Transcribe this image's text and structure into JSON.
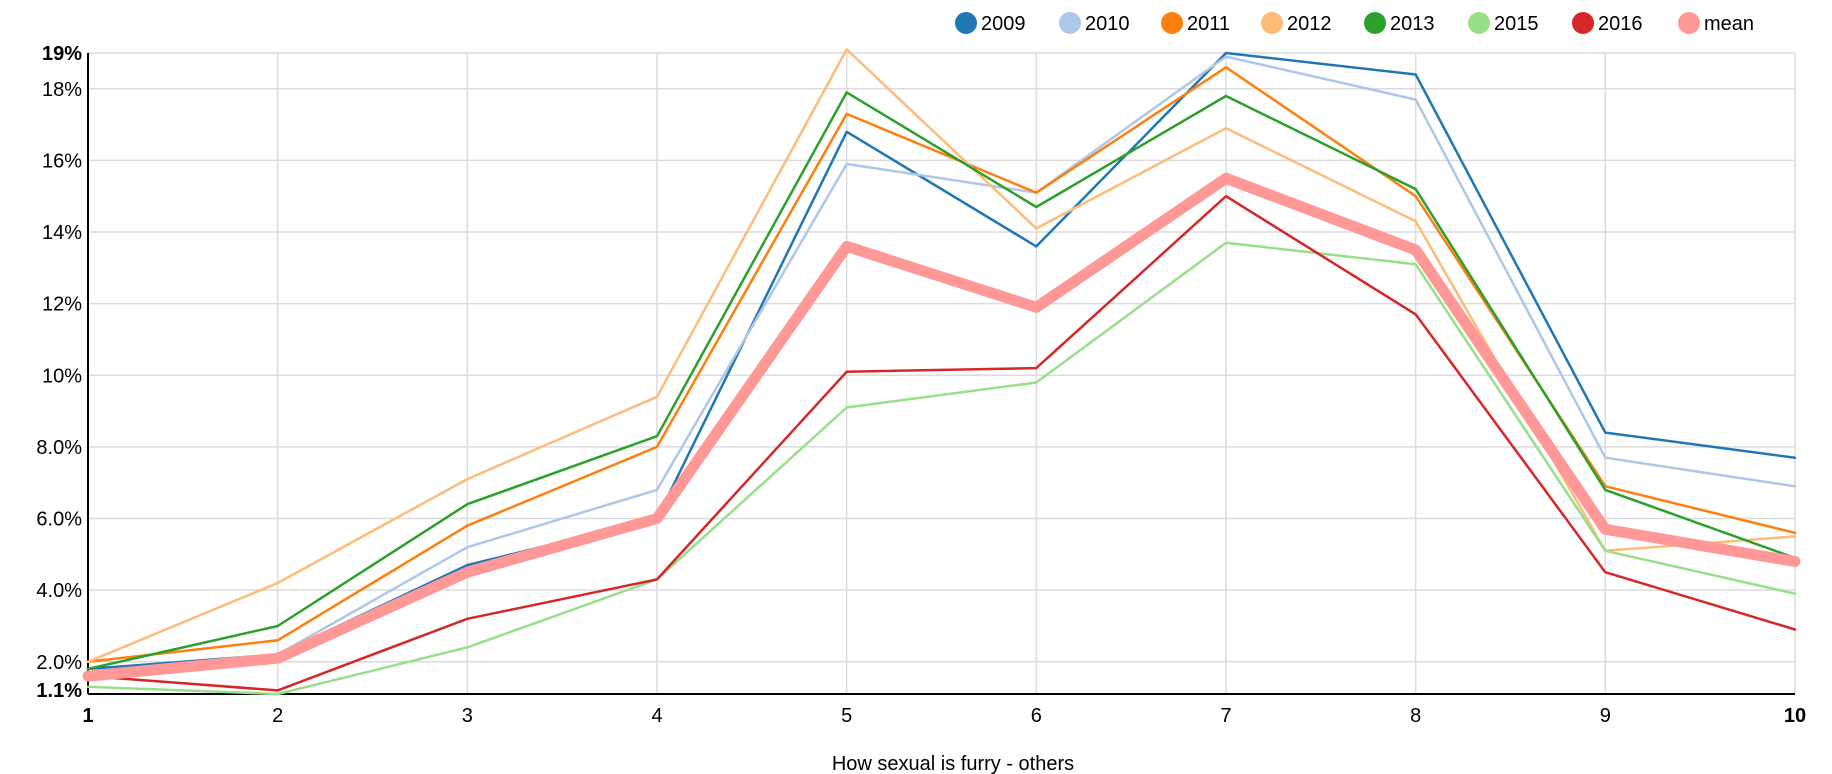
{
  "chart_data": {
    "type": "line",
    "xlabel": "How sexual is furry - others",
    "x": [
      1,
      2,
      3,
      4,
      5,
      6,
      7,
      8,
      9,
      10
    ],
    "xlim": [
      1,
      10
    ],
    "ylim": [
      1.1,
      19
    ],
    "y_ticks": [
      {
        "value": 1.1,
        "label": "1.1%",
        "bold": true
      },
      {
        "value": 2,
        "label": "2.0%",
        "bold": false
      },
      {
        "value": 4,
        "label": "4.0%",
        "bold": false
      },
      {
        "value": 6,
        "label": "6.0%",
        "bold": false
      },
      {
        "value": 8,
        "label": "8.0%",
        "bold": false
      },
      {
        "value": 10,
        "label": "10%",
        "bold": false
      },
      {
        "value": 12,
        "label": "12%",
        "bold": false
      },
      {
        "value": 14,
        "label": "14%",
        "bold": false
      },
      {
        "value": 16,
        "label": "16%",
        "bold": false
      },
      {
        "value": 18,
        "label": "18%",
        "bold": false
      },
      {
        "value": 19,
        "label": "19%",
        "bold": true
      }
    ],
    "x_ticks": [
      {
        "value": 1,
        "label": "1",
        "bold": true
      },
      {
        "value": 2,
        "label": "2",
        "bold": false
      },
      {
        "value": 3,
        "label": "3",
        "bold": false
      },
      {
        "value": 4,
        "label": "4",
        "bold": false
      },
      {
        "value": 5,
        "label": "5",
        "bold": false
      },
      {
        "value": 6,
        "label": "6",
        "bold": false
      },
      {
        "value": 7,
        "label": "7",
        "bold": false
      },
      {
        "value": 8,
        "label": "8",
        "bold": false
      },
      {
        "value": 9,
        "label": "9",
        "bold": false
      },
      {
        "value": 10,
        "label": "10",
        "bold": true
      }
    ],
    "grid": true,
    "legend_position": "top-right",
    "series": [
      {
        "name": "2009",
        "color": "#1f77b4",
        "values": [
          1.8,
          2.2,
          4.7,
          6.0,
          16.8,
          13.6,
          19.0,
          18.4,
          8.4,
          7.7
        ]
      },
      {
        "name": "2010",
        "color": "#aec7e8",
        "values": [
          1.7,
          2.2,
          5.2,
          6.8,
          15.9,
          15.1,
          18.9,
          17.7,
          7.7,
          6.9
        ]
      },
      {
        "name": "2011",
        "color": "#ff7f0e",
        "values": [
          2.0,
          2.6,
          5.8,
          8.0,
          17.3,
          15.1,
          18.6,
          15.0,
          6.9,
          5.6
        ]
      },
      {
        "name": "2012",
        "color": "#ffbb78",
        "values": [
          2.0,
          4.2,
          7.1,
          9.4,
          19.1,
          14.1,
          16.9,
          14.3,
          5.1,
          5.5
        ]
      },
      {
        "name": "2013",
        "color": "#2ca02c",
        "values": [
          1.8,
          3.0,
          6.4,
          8.3,
          17.9,
          14.7,
          17.8,
          15.2,
          6.8,
          4.9
        ]
      },
      {
        "name": "2015",
        "color": "#98df8a",
        "values": [
          1.3,
          1.1,
          2.4,
          4.3,
          9.1,
          9.8,
          13.7,
          13.1,
          5.1,
          3.9
        ]
      },
      {
        "name": "2016",
        "color": "#d62728",
        "values": [
          1.6,
          1.2,
          3.2,
          4.3,
          10.1,
          10.2,
          15.0,
          11.7,
          4.5,
          2.9
        ]
      },
      {
        "name": "mean",
        "color": "#ff9896",
        "values": [
          1.6,
          2.1,
          4.5,
          6.0,
          13.6,
          11.9,
          15.5,
          13.5,
          5.7,
          4.8
        ]
      }
    ]
  }
}
